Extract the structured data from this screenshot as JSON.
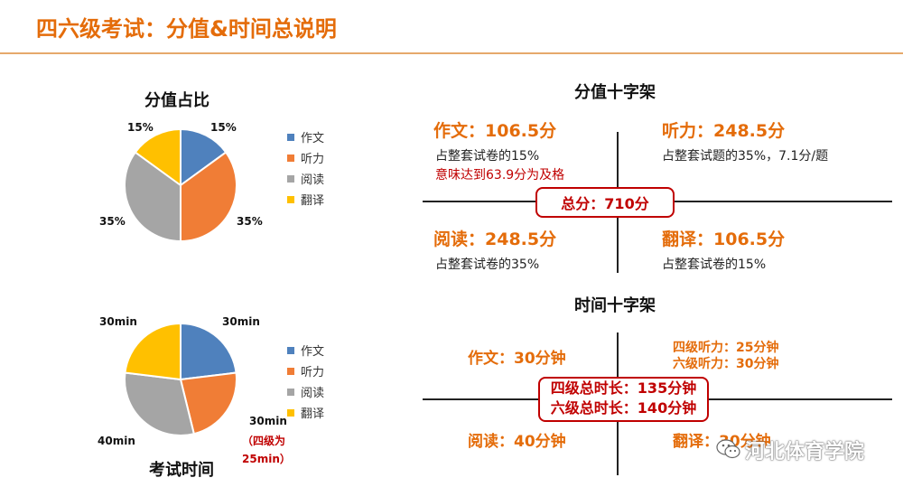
{
  "header": {
    "title": "四六级考试：分值&时间总说明"
  },
  "chart_data": [
    {
      "type": "pie",
      "title": "分值占比",
      "categories": [
        "作文",
        "听力",
        "阅读",
        "翻译"
      ],
      "values": [
        15,
        35,
        35,
        15
      ],
      "labels": [
        "15%",
        "35%",
        "35%",
        "15%"
      ],
      "colors": [
        "#4f81bd",
        "#f07d36",
        "#a5a5a5",
        "#ffc000"
      ],
      "legend": "right"
    },
    {
      "type": "pie",
      "title": "考试时间",
      "categories": [
        "作文",
        "听力",
        "阅读",
        "翻译"
      ],
      "values": [
        30,
        30,
        40,
        30
      ],
      "labels": [
        "30min",
        "30min",
        "40min",
        "30min"
      ],
      "colors": [
        "#4f81bd",
        "#f07d36",
        "#a5a5a5",
        "#ffc000"
      ],
      "legend": "right"
    }
  ],
  "pie1": {
    "title": "分值占比",
    "label_essay": "15%",
    "label_listen": "35%",
    "label_read": "35%",
    "label_trans": "15%"
  },
  "pie2": {
    "title": "考试时间",
    "label_essay": "30min",
    "label_listen": "30min",
    "label_read": "40min",
    "label_trans": "30min",
    "note_line1": "（四级为",
    "note_line2": "25min）"
  },
  "legend": {
    "item1": "作文",
    "item2": "听力",
    "item3": "阅读",
    "item4": "翻译"
  },
  "score_cross": {
    "title": "分值十字架",
    "essay_head": "作文：106.5分",
    "essay_sub": "占整套试卷的15%",
    "essay_red": "意味达到63.9分为及格",
    "listen_head": "听力：248.5分",
    "listen_sub": "占整套试题的35%，7.1分/题",
    "read_head": "阅读：248.5分",
    "read_sub": "占整套试卷的35%",
    "trans_head": "翻译：106.5分",
    "trans_sub": "占整套试卷的15%",
    "total": "总分：710分"
  },
  "time_cross": {
    "title": "时间十字架",
    "essay": "作文：30分钟",
    "listen_cet4": "四级听力：25分钟",
    "listen_cet6": "六级听力：30分钟",
    "read": "阅读：40分钟",
    "trans": "翻译：30分钟",
    "total_cet4": "四级总时长：135分钟",
    "total_cet6": "六级总时长：140分钟"
  },
  "watermark": {
    "text": "河北体育学院",
    "icon": "wechat-icon"
  }
}
